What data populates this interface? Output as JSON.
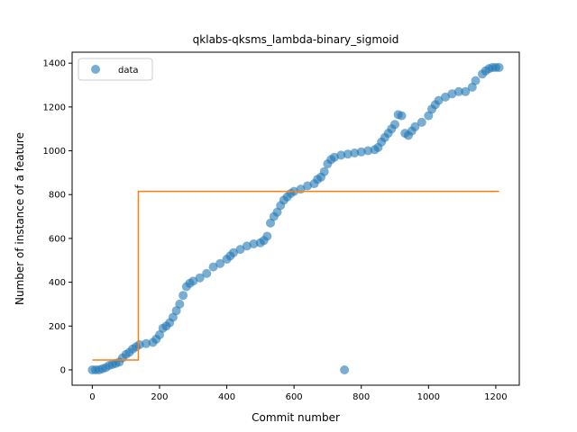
{
  "chart_data": {
    "type": "scatter",
    "title": "qklabs-qksms_lambda-binary_sigmoid",
    "xlabel": "Commit number",
    "ylabel": "Number of instance of a feature",
    "xlim": [
      -60,
      1270
    ],
    "ylim": [
      -70,
      1450
    ],
    "xticks": [
      0,
      200,
      400,
      600,
      800,
      1000,
      1200
    ],
    "yticks": [
      0,
      200,
      400,
      600,
      800,
      1000,
      1200,
      1400
    ],
    "grid": false,
    "legend_position": "top-left",
    "series": [
      {
        "name": "data",
        "kind": "scatter",
        "color": "#1f77b4",
        "points": [
          [
            0,
            0
          ],
          [
            10,
            0
          ],
          [
            20,
            0
          ],
          [
            30,
            5
          ],
          [
            40,
            10
          ],
          [
            50,
            20
          ],
          [
            60,
            25
          ],
          [
            70,
            30
          ],
          [
            80,
            35
          ],
          [
            90,
            55
          ],
          [
            100,
            70
          ],
          [
            110,
            80
          ],
          [
            120,
            95
          ],
          [
            130,
            105
          ],
          [
            140,
            115
          ],
          [
            160,
            120
          ],
          [
            180,
            125
          ],
          [
            190,
            140
          ],
          [
            200,
            160
          ],
          [
            210,
            190
          ],
          [
            220,
            200
          ],
          [
            230,
            215
          ],
          [
            240,
            240
          ],
          [
            250,
            270
          ],
          [
            260,
            300
          ],
          [
            270,
            340
          ],
          [
            280,
            380
          ],
          [
            290,
            395
          ],
          [
            300,
            405
          ],
          [
            320,
            420
          ],
          [
            340,
            440
          ],
          [
            360,
            470
          ],
          [
            380,
            485
          ],
          [
            400,
            505
          ],
          [
            410,
            520
          ],
          [
            420,
            535
          ],
          [
            440,
            550
          ],
          [
            460,
            565
          ],
          [
            480,
            575
          ],
          [
            500,
            580
          ],
          [
            510,
            590
          ],
          [
            520,
            610
          ],
          [
            530,
            670
          ],
          [
            540,
            700
          ],
          [
            550,
            720
          ],
          [
            560,
            750
          ],
          [
            570,
            775
          ],
          [
            580,
            790
          ],
          [
            590,
            805
          ],
          [
            600,
            815
          ],
          [
            620,
            825
          ],
          [
            640,
            840
          ],
          [
            660,
            850
          ],
          [
            670,
            870
          ],
          [
            680,
            880
          ],
          [
            690,
            905
          ],
          [
            700,
            940
          ],
          [
            710,
            960
          ],
          [
            720,
            970
          ],
          [
            740,
            980
          ],
          [
            760,
            985
          ],
          [
            780,
            990
          ],
          [
            800,
            995
          ],
          [
            820,
            1000
          ],
          [
            840,
            1005
          ],
          [
            850,
            1015
          ],
          [
            860,
            1040
          ],
          [
            870,
            1060
          ],
          [
            880,
            1080
          ],
          [
            890,
            1100
          ],
          [
            900,
            1120
          ],
          [
            910,
            1165
          ],
          [
            920,
            1160
          ],
          [
            930,
            1080
          ],
          [
            940,
            1070
          ],
          [
            950,
            1090
          ],
          [
            960,
            1110
          ],
          [
            980,
            1130
          ],
          [
            1000,
            1160
          ],
          [
            1010,
            1190
          ],
          [
            1020,
            1210
          ],
          [
            1030,
            1230
          ],
          [
            1050,
            1245
          ],
          [
            1070,
            1260
          ],
          [
            1090,
            1270
          ],
          [
            1110,
            1270
          ],
          [
            1130,
            1290
          ],
          [
            1140,
            1320
          ],
          [
            1160,
            1350
          ],
          [
            1170,
            1365
          ],
          [
            1180,
            1375
          ],
          [
            1190,
            1380
          ],
          [
            1200,
            1380
          ],
          [
            1210,
            1380
          ],
          [
            750,
            0
          ]
        ]
      },
      {
        "name": "",
        "kind": "step",
        "color": "#ff7f0e",
        "points": [
          [
            0,
            45
          ],
          [
            137,
            45
          ],
          [
            137,
            815
          ],
          [
            1210,
            815
          ]
        ]
      }
    ]
  }
}
